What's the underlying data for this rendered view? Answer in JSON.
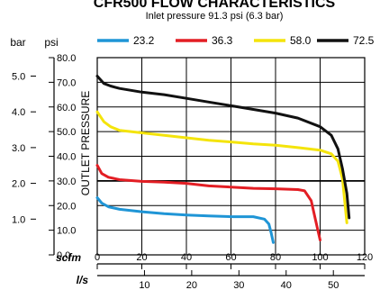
{
  "header": {
    "title": "CFR500 FLOW CHARACTERISTICS",
    "subtitle": "Inlet pressure 91.3 psi (6.3 bar)"
  },
  "chart_data": {
    "type": "line",
    "title": "CFR500 FLOW CHARACTERISTICS",
    "subtitle": "Inlet pressure 91.3 psi (6.3 bar)",
    "ylabel": "OUTLET PRESSURE",
    "y_units": {
      "primary": "psi",
      "secondary": "bar"
    },
    "x_units": {
      "primary": "scfm",
      "secondary": "l/s"
    },
    "xlim": [
      0,
      120
    ],
    "ylim": [
      0,
      80
    ],
    "psi_ticks": [
      "0.0",
      "10.0",
      "20.0",
      "30.0",
      "40.0",
      "50.0",
      "60.0",
      "70.0",
      "80.0"
    ],
    "psi_tick_values": [
      0,
      10,
      20,
      30,
      40,
      50,
      60,
      70,
      80
    ],
    "bar_ticks": [
      "1.0",
      "2.0",
      "3.0",
      "4.0",
      "5.0"
    ],
    "bar_tick_values": [
      1,
      2,
      3,
      4,
      5
    ],
    "scfm_ticks": [
      "0",
      "20",
      "40",
      "60",
      "80",
      "100",
      "120"
    ],
    "scfm_tick_values": [
      0,
      20,
      40,
      60,
      80,
      100,
      120
    ],
    "ls_ticks": [
      "10",
      "20",
      "30",
      "40",
      "50"
    ],
    "ls_tick_values": [
      10,
      20,
      30,
      40,
      50
    ],
    "grid": true,
    "legend_position": "top",
    "series": [
      {
        "name": "23.2",
        "color": "#1f95d6",
        "x": [
          0,
          2,
          5,
          10,
          20,
          30,
          40,
          50,
          60,
          70,
          75,
          77,
          78,
          79
        ],
        "y": [
          23.2,
          21,
          19.5,
          18.5,
          17.5,
          16.7,
          16.2,
          15.8,
          15.5,
          15.5,
          14.5,
          12.5,
          9,
          5
        ]
      },
      {
        "name": "36.3",
        "color": "#e31e24",
        "x": [
          0,
          2,
          5,
          10,
          20,
          30,
          40,
          50,
          60,
          70,
          80,
          90,
          93,
          96,
          98,
          100
        ],
        "y": [
          36.3,
          33,
          31.5,
          30.5,
          29.8,
          29.5,
          29,
          28,
          27.5,
          27,
          26.8,
          26.5,
          26,
          22,
          14,
          6
        ]
      },
      {
        "name": "58.0",
        "color": "#f4e40b",
        "x": [
          0,
          3,
          6,
          10,
          20,
          30,
          40,
          50,
          60,
          70,
          80,
          90,
          100,
          105,
          108,
          110,
          112
        ],
        "y": [
          58,
          54,
          52,
          50.5,
          49.5,
          48.5,
          47.5,
          46.5,
          45.8,
          45,
          44.5,
          43.5,
          42.5,
          41,
          38,
          31,
          13
        ]
      },
      {
        "name": "72.5",
        "color": "#111111",
        "x": [
          0,
          3,
          6,
          10,
          20,
          30,
          40,
          50,
          60,
          70,
          80,
          90,
          100,
          105,
          108,
          110,
          112,
          113
        ],
        "y": [
          72.5,
          69.5,
          68.5,
          67.5,
          66,
          65,
          63.5,
          62,
          60.5,
          59,
          57.5,
          55.5,
          52,
          48.5,
          43,
          35,
          25,
          15
        ]
      }
    ]
  }
}
